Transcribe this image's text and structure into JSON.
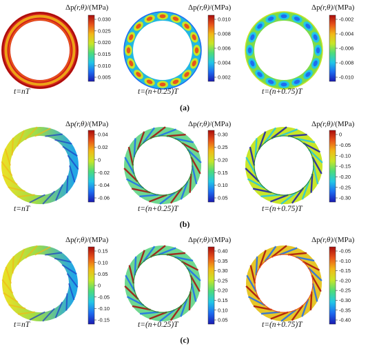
{
  "title_prefix": "Δp",
  "title_args": "(r,θ)",
  "title_unit": "/(MPa)",
  "colors": [
    "#1a1ab0",
    "#1e6cf0",
    "#22c7e6",
    "#4ddc7a",
    "#c8e628",
    "#f2b818",
    "#e8541a",
    "#a80c0c"
  ],
  "rows": [
    {
      "label": "(a)",
      "panels": [
        {
          "time": "t=nT",
          "ticks": [
            "0.030",
            "0.025",
            "0.020",
            "0.015",
            "0.010",
            "0.005"
          ],
          "pattern": "hot-ring"
        },
        {
          "time": "t=(n+0.25)T",
          "ticks": [
            "0.010",
            "0.008",
            "0.006",
            "0.004",
            "0.002"
          ],
          "pattern": "cells"
        },
        {
          "time": "t=(n+0.75)T",
          "ticks": [
            "-0.002",
            "-0.004",
            "-0.006",
            "-0.008",
            "-0.010"
          ],
          "pattern": "cells-blue"
        }
      ]
    },
    {
      "label": "(b)",
      "panels": [
        {
          "time": "t=nT",
          "ticks": [
            "0.04",
            "0.02",
            "0",
            "-0.02",
            "-0.04",
            "-0.06"
          ],
          "pattern": "gradient"
        },
        {
          "time": "t=(n+0.25)T",
          "ticks": [
            "0.30",
            "0.25",
            "0.20",
            "0.15",
            "0.10",
            "0.05"
          ],
          "pattern": "swirl-warm"
        },
        {
          "time": "t=(n+0.75)T",
          "ticks": [
            "0",
            "-0.05",
            "-0.10",
            "-0.15",
            "-0.20",
            "-0.25",
            "-0.30"
          ],
          "pattern": "swirl-cool"
        }
      ]
    },
    {
      "label": "(c)",
      "panels": [
        {
          "time": "t=nT",
          "ticks": [
            "0.15",
            "0.10",
            "0.05",
            "0",
            "-0.05",
            "-0.10",
            "-0.15"
          ],
          "pattern": "gradient"
        },
        {
          "time": "t=(n+0.25)T",
          "ticks": [
            "0.40",
            "0.35",
            "0.30",
            "0.25",
            "0.20",
            "0.15",
            "0.10",
            "0.05"
          ],
          "pattern": "swirl-warm"
        },
        {
          "time": "t=(n+0.75)T",
          "ticks": [
            "-0.05",
            "-0.10",
            "-0.15",
            "-0.20",
            "-0.25",
            "-0.30",
            "-0.35",
            "-0.40"
          ],
          "pattern": "swirl-yellow"
        }
      ]
    }
  ]
}
